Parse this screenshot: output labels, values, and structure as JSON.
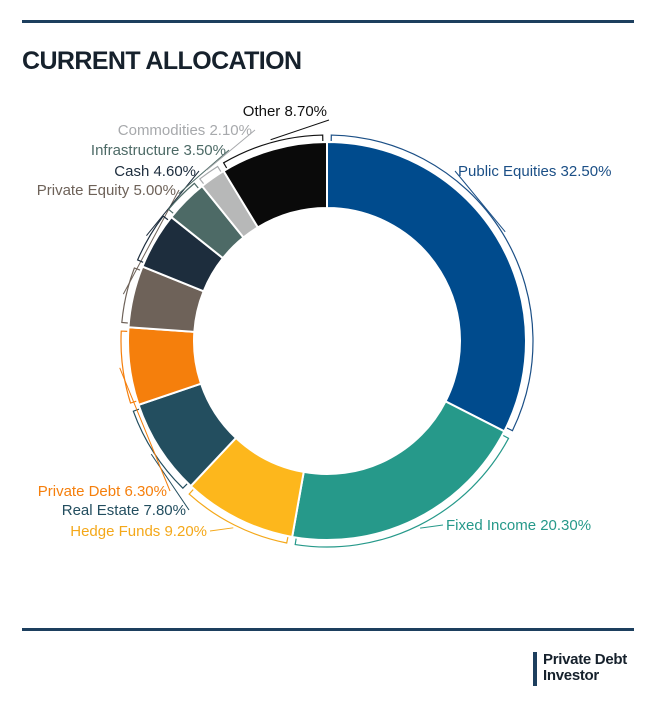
{
  "title": "CURRENT ALLOCATION",
  "brand": {
    "line1": "Private Debt",
    "line2": "Investor"
  },
  "colors": {
    "rule": "#1d3f5e"
  },
  "chart_data": {
    "type": "pie",
    "style": "donut",
    "title": "CURRENT ALLOCATION",
    "slices": [
      {
        "label": "Public Equities",
        "value": 32.5,
        "display": "Public Equities 32.50%",
        "color": "#004b8d",
        "label_color": "#1b4f86"
      },
      {
        "label": "Fixed Income",
        "value": 20.3,
        "display": "Fixed Income 20.30%",
        "color": "#26998a",
        "label_color": "#26998a"
      },
      {
        "label": "Hedge Funds",
        "value": 9.2,
        "display": "Hedge Funds 9.20%",
        "color": "#fdb71c",
        "label_color": "#f4a81a"
      },
      {
        "label": "Real Estate",
        "value": 7.8,
        "display": "Real Estate 7.80%",
        "color": "#234e5f",
        "label_color": "#234e5f"
      },
      {
        "label": "Private Debt",
        "value": 6.3,
        "display": "Private Debt 6.30%",
        "color": "#f57f0c",
        "label_color": "#f57f0c"
      },
      {
        "label": "Private Equity",
        "value": 5.0,
        "display": "Private Equity 5.00%",
        "color": "#6e6259",
        "label_color": "#6e6259"
      },
      {
        "label": "Cash",
        "value": 4.6,
        "display": "Cash 4.60%",
        "color": "#1d2d3d",
        "label_color": "#1d2d3d"
      },
      {
        "label": "Infrastructure",
        "value": 3.5,
        "display": "Infrastructure 3.50%",
        "color": "#4d6a66",
        "label_color": "#4d6a66"
      },
      {
        "label": "Commodities",
        "value": 2.1,
        "display": "Commodities 2.10%",
        "color": "#b7b8b8",
        "label_color": "#a7a9ac"
      },
      {
        "label": "Other",
        "value": 8.7,
        "display": "Other 8.70%",
        "color": "#0a0a0a",
        "label_color": "#111111"
      }
    ]
  }
}
